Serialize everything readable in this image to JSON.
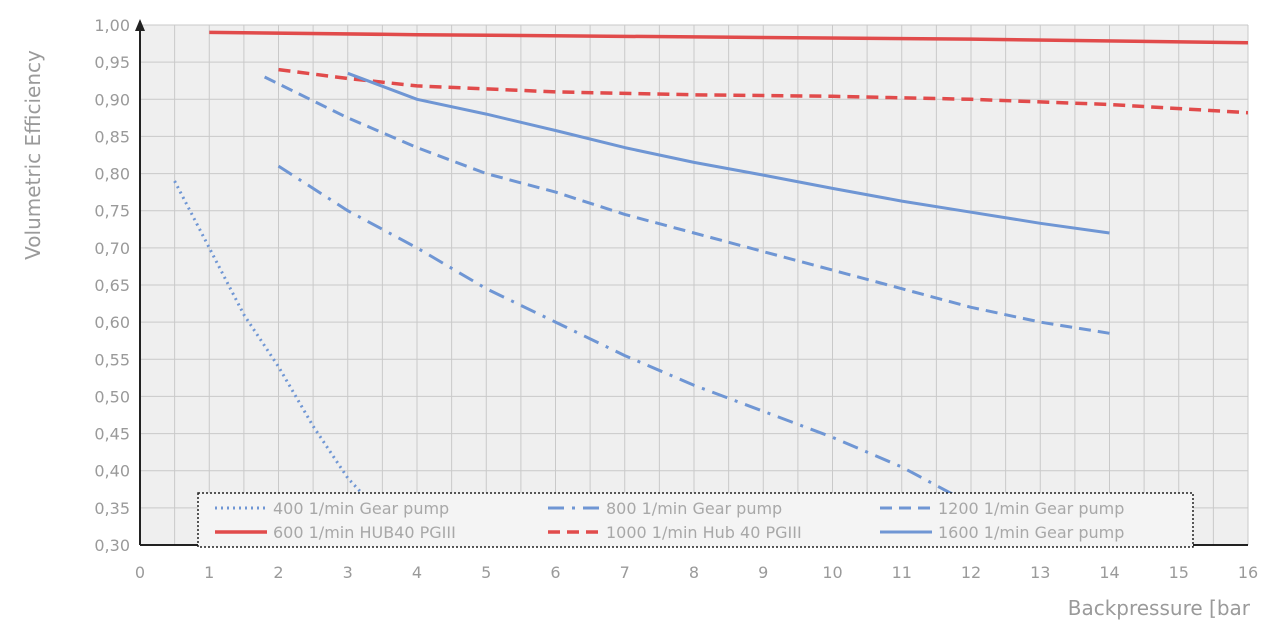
{
  "chart_data": {
    "type": "line",
    "title": "",
    "xlabel": "Backpressure [bar",
    "ylabel": "Volumetric Efficiency",
    "xlim": [
      0,
      16
    ],
    "ylim": [
      0.3,
      1.0
    ],
    "x_ticks": [
      "0",
      "1",
      "2",
      "3",
      "4",
      "5",
      "6",
      "7",
      "8",
      "9",
      "10",
      "11",
      "12",
      "13",
      "14",
      "15",
      "16"
    ],
    "y_ticks": [
      "0,30",
      "0,35",
      "0,40",
      "0,45",
      "0,50",
      "0,55",
      "0,60",
      "0,65",
      "0,70",
      "0,75",
      "0,80",
      "0,85",
      "0,90",
      "0,95",
      "1,00"
    ],
    "grid": true,
    "legend_position": "bottom-center",
    "series": [
      {
        "name": "400 1/min Gear pump",
        "color": "#6f96d4",
        "style": "dotted",
        "x": [
          0.5,
          1.0,
          1.5,
          2.0,
          2.5,
          3.0,
          3.3
        ],
        "y": [
          0.79,
          0.7,
          0.61,
          0.54,
          0.46,
          0.39,
          0.36
        ]
      },
      {
        "name": "800 1/min Gear pump",
        "color": "#6f96d4",
        "style": "dashdot",
        "x": [
          2,
          3,
          4,
          5,
          6,
          7,
          8,
          9,
          10,
          11,
          11.8
        ],
        "y": [
          0.81,
          0.75,
          0.7,
          0.645,
          0.6,
          0.555,
          0.515,
          0.48,
          0.445,
          0.405,
          0.365
        ]
      },
      {
        "name": "1200 1/min Gear pump",
        "color": "#6f96d4",
        "style": "dashed",
        "x": [
          1.8,
          3,
          4,
          5,
          6,
          7,
          8,
          9,
          10,
          11,
          12,
          13,
          14
        ],
        "y": [
          0.93,
          0.875,
          0.835,
          0.8,
          0.775,
          0.745,
          0.72,
          0.695,
          0.67,
          0.645,
          0.62,
          0.6,
          0.585
        ]
      },
      {
        "name": "600 1/min HUB40 PGIII",
        "color": "#e14b4b",
        "style": "solid",
        "x": [
          1,
          4,
          8,
          12,
          16
        ],
        "y": [
          0.99,
          0.987,
          0.984,
          0.981,
          0.976
        ]
      },
      {
        "name": "1000 1/min Hub 40 PGIII",
        "color": "#e14b4b",
        "style": "dashed",
        "x": [
          2,
          3,
          4,
          6,
          8,
          10,
          12,
          14,
          16
        ],
        "y": [
          0.94,
          0.928,
          0.918,
          0.91,
          0.906,
          0.904,
          0.9,
          0.893,
          0.882
        ]
      },
      {
        "name": "1600 1/min Gear pump",
        "color": "#6f96d4",
        "style": "solid",
        "x": [
          3,
          4,
          5,
          6,
          7,
          8,
          9,
          10,
          11,
          12,
          13,
          14
        ],
        "y": [
          0.935,
          0.9,
          0.88,
          0.858,
          0.835,
          0.815,
          0.798,
          0.78,
          0.763,
          0.748,
          0.733,
          0.72
        ]
      }
    ]
  }
}
